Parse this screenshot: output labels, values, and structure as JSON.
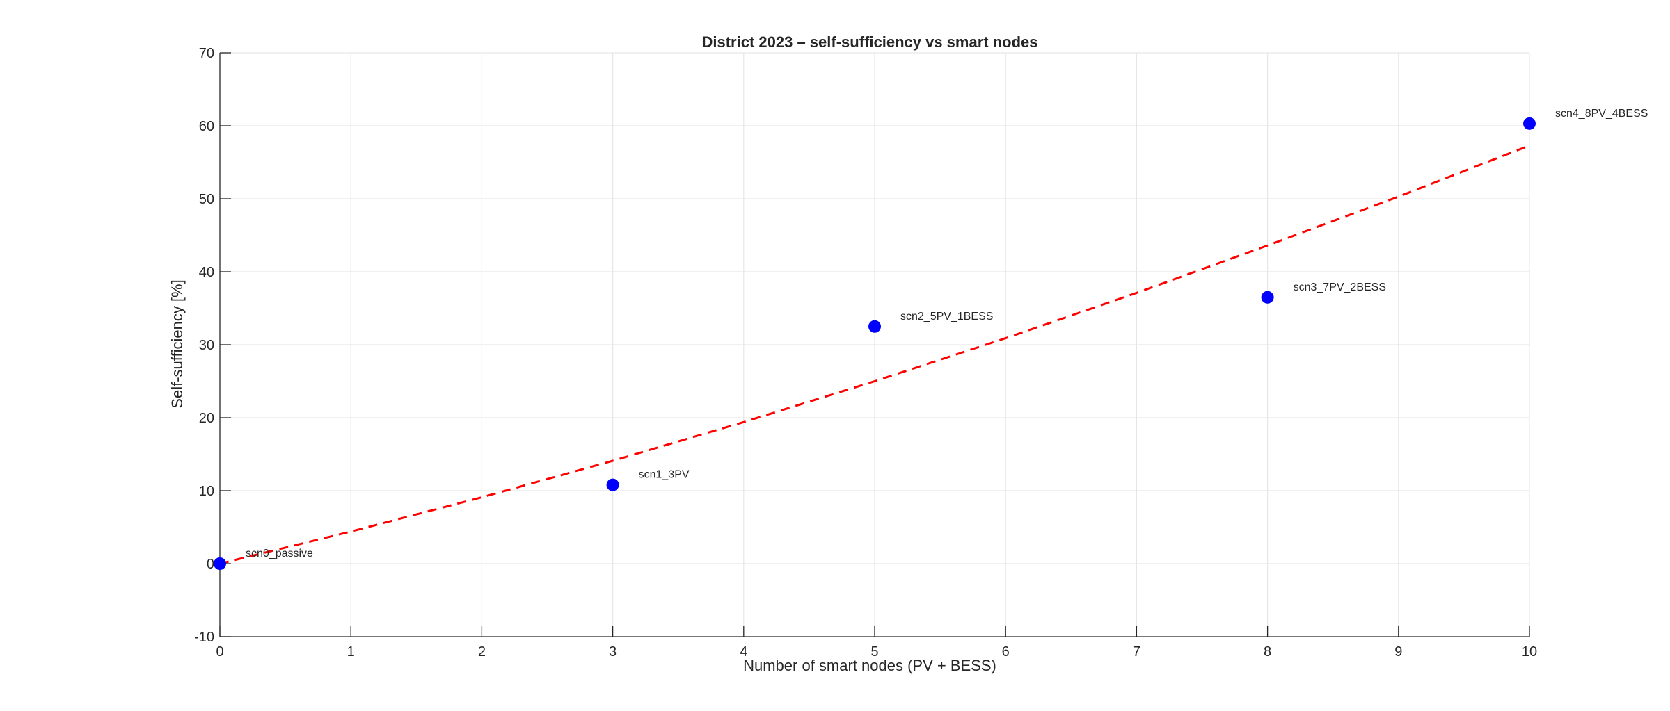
{
  "chart_data": {
    "type": "scatter",
    "title": "District 2023 – self-sufficiency vs smart nodes",
    "xlabel": "Number of smart nodes (PV + BESS)",
    "ylabel": "Self-sufficiency [%]",
    "xlim": [
      0,
      10
    ],
    "ylim": [
      -10,
      70
    ],
    "xticks": [
      0,
      1,
      2,
      3,
      4,
      5,
      6,
      7,
      8,
      9,
      10
    ],
    "yticks": [
      -10,
      0,
      10,
      20,
      30,
      40,
      50,
      60,
      70
    ],
    "grid": true,
    "points": [
      {
        "x": 0,
        "y": 0,
        "label": "scn0_passive"
      },
      {
        "x": 3,
        "y": 10.8,
        "label": "scn1_3PV"
      },
      {
        "x": 5,
        "y": 32.5,
        "label": "scn2_5PV_1BESS"
      },
      {
        "x": 8,
        "y": 36.5,
        "label": "scn3_7PV_2BESS"
      },
      {
        "x": 10,
        "y": 60.3,
        "label": "scn4_8PV_4BESS"
      }
    ],
    "trend": {
      "style": "dashed",
      "color": "#ff0000",
      "x": [
        0,
        1,
        2,
        3,
        4,
        5,
        6,
        7,
        8,
        9,
        10
      ],
      "y": [
        0,
        4.4,
        9.1,
        14.1,
        19.4,
        25.0,
        30.9,
        37.1,
        43.6,
        50.3,
        57.3
      ]
    },
    "colors": {
      "points": "#0000ff",
      "trend": "#ff0000",
      "grid": "#e6e6e6",
      "axis": "#262626"
    }
  }
}
